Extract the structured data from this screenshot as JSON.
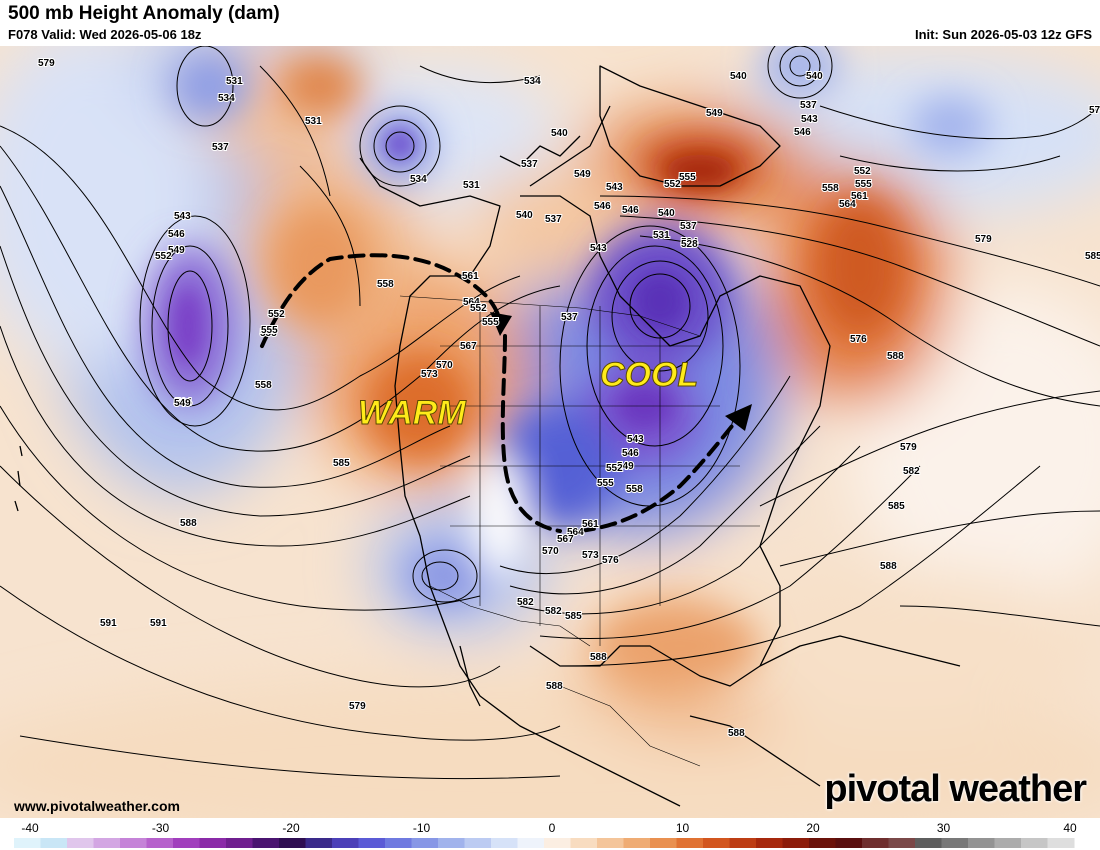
{
  "header": {
    "title": "500 mb Height Anomaly (dam)",
    "valid": "F078 Valid: Wed 2026-05-06 18z",
    "init": "Init: Sun 2026-05-03 12z GFS"
  },
  "annotations": {
    "warm": "WARM",
    "cool": "COOL"
  },
  "footer": {
    "url": "www.pivotalweather.com",
    "brand": "pivotal weather"
  },
  "colorbar": {
    "ticks": [
      "-40",
      "-30",
      "-20",
      "-10",
      "0",
      "10",
      "20",
      "30",
      "40"
    ],
    "colors": [
      "#dff3fb",
      "#c9e6f6",
      "#e0c6ec",
      "#d3a6e3",
      "#c583d8",
      "#b661cc",
      "#a13fbd",
      "#8a2aa8",
      "#6f1f8f",
      "#4a1470",
      "#2e0e52",
      "#3a2a8a",
      "#4b40b8",
      "#5b5bd6",
      "#6f7ae0",
      "#8797e6",
      "#a1b3ec",
      "#bccbf2",
      "#d6e2f8",
      "#eef3fb",
      "#fbeee2",
      "#f8dcc0",
      "#f4c59a",
      "#efac74",
      "#e99050",
      "#e07233",
      "#d2561f",
      "#bd3d14",
      "#a6280d",
      "#8c1c0a",
      "#6b120a",
      "#5a0f0f",
      "#6e2e2e",
      "#7a4848",
      "#5e5e5e",
      "#787878",
      "#939393",
      "#acacac",
      "#c6c6c6",
      "#dedede"
    ]
  },
  "contour_labels": [
    {
      "text": "579"
    },
    {
      "text": "531"
    },
    {
      "text": "534"
    },
    {
      "text": "537"
    },
    {
      "text": "540"
    },
    {
      "text": "543"
    },
    {
      "text": "546"
    },
    {
      "text": "549"
    },
    {
      "text": "552"
    },
    {
      "text": "555"
    },
    {
      "text": "558"
    },
    {
      "text": "564"
    },
    {
      "text": "549"
    },
    {
      "text": "531"
    },
    {
      "text": "534"
    },
    {
      "text": "531"
    },
    {
      "text": "534"
    },
    {
      "text": "540"
    },
    {
      "text": "537"
    },
    {
      "text": "549"
    },
    {
      "text": "555"
    },
    {
      "text": "552"
    },
    {
      "text": "546"
    },
    {
      "text": "543"
    },
    {
      "text": "540"
    },
    {
      "text": "537"
    },
    {
      "text": "534"
    },
    {
      "text": "531"
    },
    {
      "text": "528"
    },
    {
      "text": "549"
    },
    {
      "text": "546"
    },
    {
      "text": "543"
    },
    {
      "text": "540"
    },
    {
      "text": "537"
    },
    {
      "text": "540"
    },
    {
      "text": "537"
    },
    {
      "text": "543"
    },
    {
      "text": "546"
    },
    {
      "text": "552"
    },
    {
      "text": "555"
    },
    {
      "text": "558"
    },
    {
      "text": "561"
    },
    {
      "text": "564"
    },
    {
      "text": "573"
    },
    {
      "text": "579"
    },
    {
      "text": "585"
    },
    {
      "text": "576"
    },
    {
      "text": "588"
    },
    {
      "text": "579"
    },
    {
      "text": "582"
    },
    {
      "text": "585"
    },
    {
      "text": "588"
    },
    {
      "text": "552"
    },
    {
      "text": "555"
    },
    {
      "text": "558"
    },
    {
      "text": "561"
    },
    {
      "text": "564"
    },
    {
      "text": "567"
    },
    {
      "text": "570"
    },
    {
      "text": "573"
    },
    {
      "text": "552"
    },
    {
      "text": "555"
    },
    {
      "text": "537"
    },
    {
      "text": "543"
    },
    {
      "text": "546"
    },
    {
      "text": "549"
    },
    {
      "text": "552"
    },
    {
      "text": "555"
    },
    {
      "text": "558"
    },
    {
      "text": "561"
    },
    {
      "text": "564"
    },
    {
      "text": "567"
    },
    {
      "text": "570"
    },
    {
      "text": "573"
    },
    {
      "text": "576"
    },
    {
      "text": "582"
    },
    {
      "text": "585"
    },
    {
      "text": "588"
    },
    {
      "text": "579"
    },
    {
      "text": "582"
    },
    {
      "text": "585"
    },
    {
      "text": "588"
    },
    {
      "text": "591"
    },
    {
      "text": "588"
    },
    {
      "text": "591"
    },
    {
      "text": "588"
    }
  ]
}
